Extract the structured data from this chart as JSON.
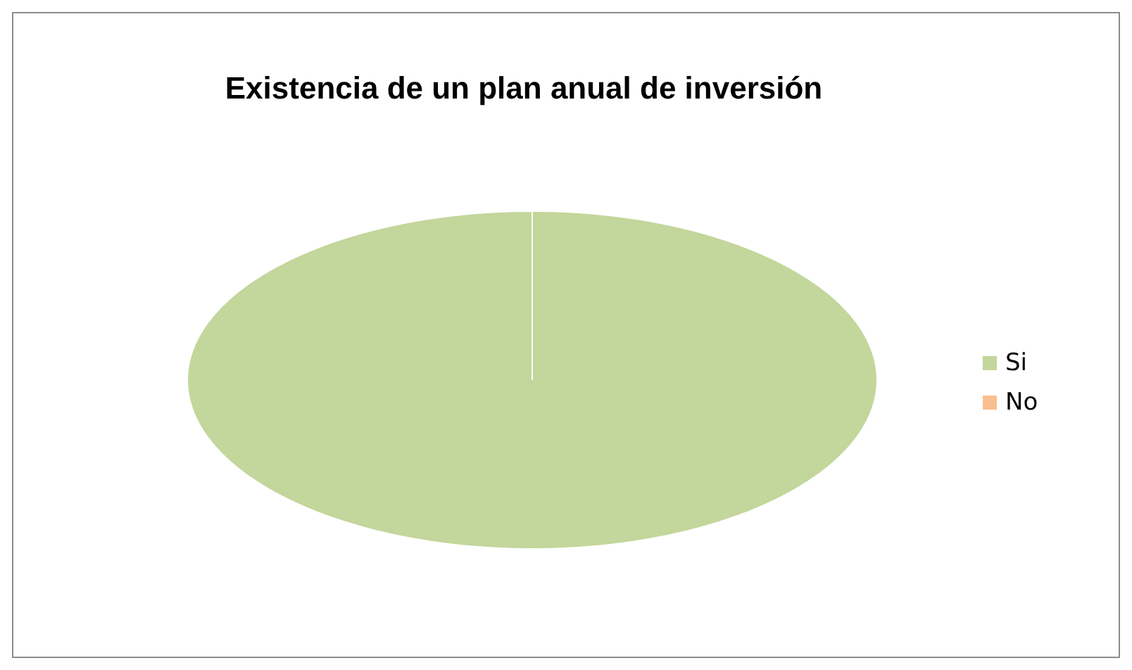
{
  "chart_data": {
    "type": "pie",
    "title": "Existencia de un plan anual de inversión",
    "categories": [
      "Si",
      "No"
    ],
    "values": [
      100,
      0
    ],
    "colors": [
      "#c3d69b",
      "#fabf8f"
    ],
    "legend": "right"
  }
}
